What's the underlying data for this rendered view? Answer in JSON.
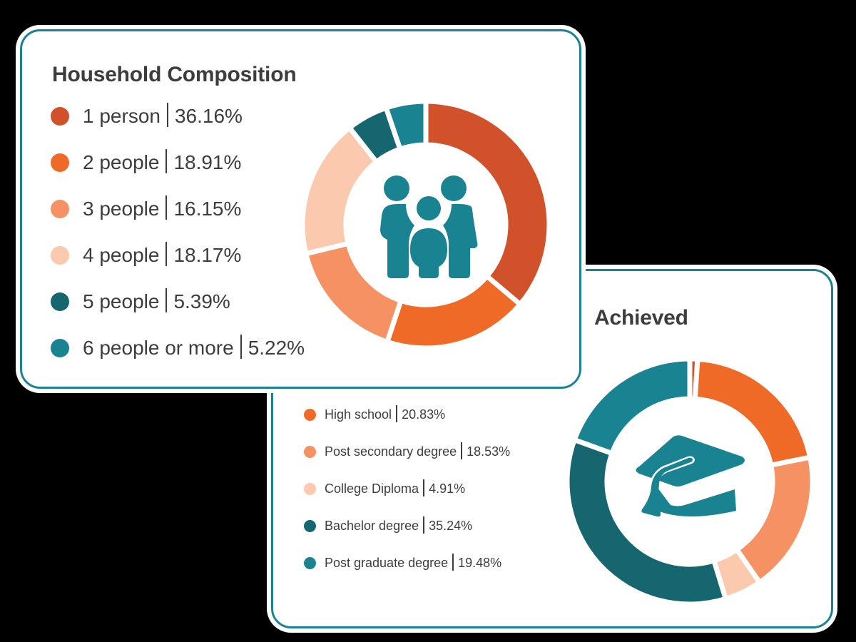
{
  "colors": {
    "red": "#D1522A",
    "orange": "#EF6A27",
    "light_orange": "#F59162",
    "peach": "#FBC9AE",
    "dark_teal": "#15666F",
    "teal": "#1A8392",
    "text": "#3D3D3D"
  },
  "household": {
    "title": "Household Composition",
    "icon": "family-icon",
    "legend": [
      {
        "label": "1 person",
        "value": "36.16%",
        "color": "#D1522A"
      },
      {
        "label": "2 people",
        "value": "18.91%",
        "color": "#EF6A27"
      },
      {
        "label": "3 people",
        "value": "16.15%",
        "color": "#F59162"
      },
      {
        "label": "4 people",
        "value": "18.17%",
        "color": "#FBC9AE"
      },
      {
        "label": "5 people",
        "value": "5.39%",
        "color": "#15666F"
      },
      {
        "label": "6 people or more",
        "value": "5.22%",
        "color": "#1A8392"
      }
    ]
  },
  "education": {
    "title": "Achieved",
    "icon": "graduation-cap-icon",
    "legend": [
      {
        "label": "High school",
        "value": "20.83%",
        "color": "#EF6A27"
      },
      {
        "label": "Post secondary degree",
        "value": "18.53%",
        "color": "#F59162"
      },
      {
        "label": "College Diploma",
        "value": "4.91%",
        "color": "#FBC9AE"
      },
      {
        "label": "Bachelor degree",
        "value": "35.24%",
        "color": "#15666F"
      },
      {
        "label": "Post graduate degree",
        "value": "19.48%",
        "color": "#1A8392"
      }
    ]
  },
  "chart_data": [
    {
      "type": "pie",
      "variant": "donut",
      "title": "Household Composition",
      "categories": [
        "1 person",
        "2 people",
        "3 people",
        "4 people",
        "5 people",
        "6 people or more"
      ],
      "values": [
        36.16,
        18.91,
        16.15,
        18.17,
        5.39,
        5.22
      ],
      "colors": [
        "#D1522A",
        "#EF6A27",
        "#F59162",
        "#FBC9AE",
        "#15666F",
        "#1A8392"
      ],
      "start_angle": "12 o'clock, clockwise",
      "legend_position": "left",
      "center_icon": "family"
    },
    {
      "type": "pie",
      "variant": "donut",
      "title": "Achieved",
      "categories": [
        "(unlabeled)",
        "High school",
        "Post secondary degree",
        "College Diploma",
        "Bachelor degree",
        "Post graduate degree"
      ],
      "values": [
        1.01,
        20.83,
        18.53,
        4.91,
        35.24,
        19.48
      ],
      "colors": [
        "#D1522A",
        "#EF6A27",
        "#F59162",
        "#FBC9AE",
        "#15666F",
        "#1A8392"
      ],
      "start_angle": "12 o'clock, clockwise",
      "legend_position": "left",
      "center_icon": "graduation-cap"
    }
  ]
}
